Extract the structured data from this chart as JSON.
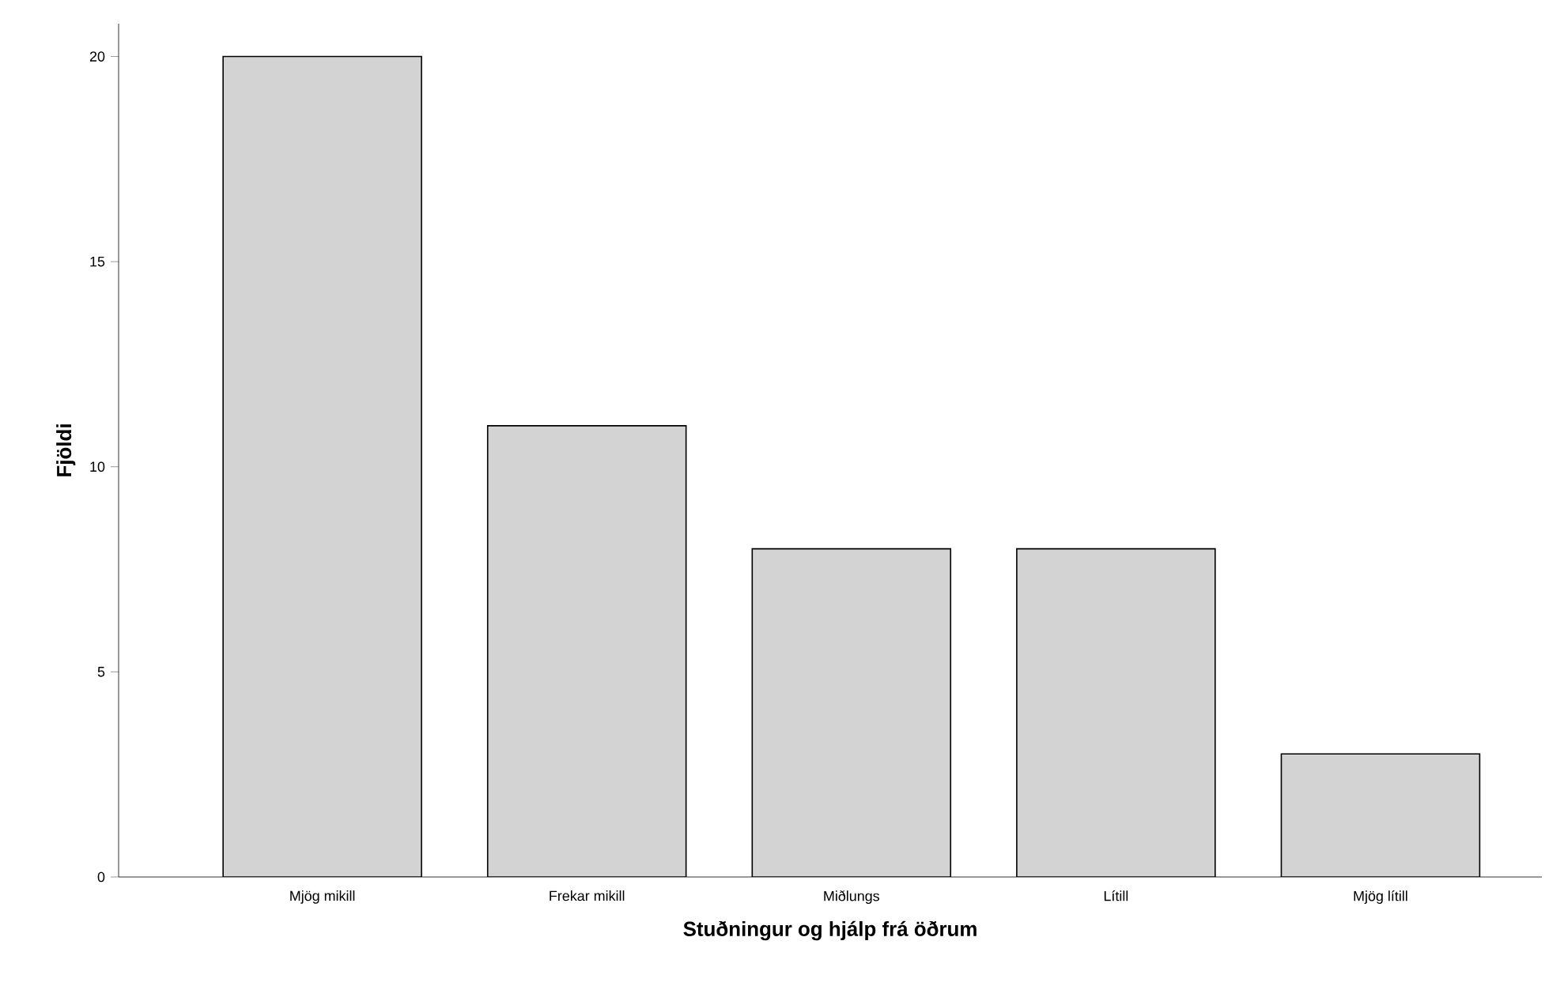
{
  "chart_data": {
    "type": "bar",
    "xlabel": "Stuðningur og hjálp frá öðrum",
    "ylabel": "Fjöldi",
    "categories": [
      "Mjög mikill",
      "Frekar mikill",
      "Miðlungs",
      "Lítill",
      "Mjög lítill"
    ],
    "values": [
      20,
      11,
      8,
      8,
      3
    ],
    "color": "#d3d3d3",
    "ylim": [
      0,
      20.8
    ],
    "yticks": [
      0,
      5,
      10,
      15,
      20
    ]
  }
}
